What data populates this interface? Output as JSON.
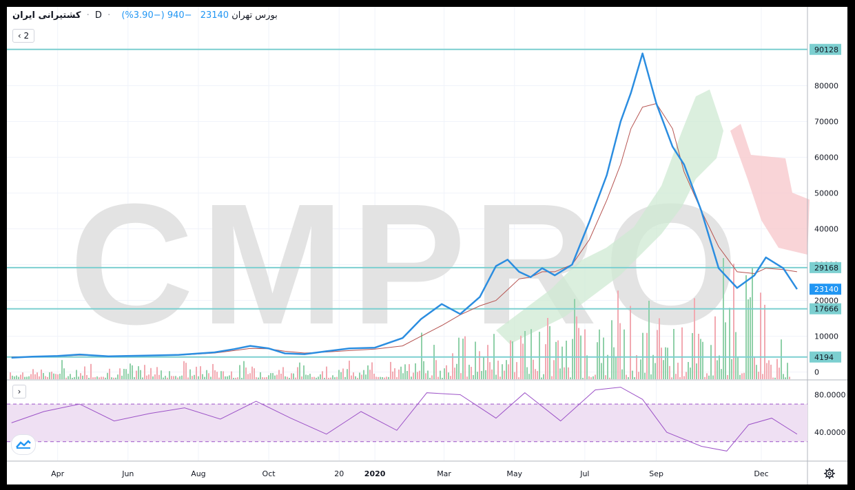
{
  "legend": {
    "symbol": "کشتیرانی ایران",
    "interval": "D",
    "exchange": "بورس تهران",
    "last": "23140",
    "change": "−940 (−3.90%)",
    "collapse_count": "2"
  },
  "colors": {
    "price_line": "#2b8de0",
    "ma_line": "#b5524f",
    "level_line": "#7ccfd0",
    "level_label_bg": "#7ccfd0",
    "price_label_bg": "#2196f3",
    "rsi_line": "#9c52c7",
    "rsi_band": "#efe0f3",
    "vol_up": "#8fd0a8",
    "vol_down": "#f2a9b1",
    "cloud_up": "#cfe9d3",
    "cloud_down": "#f8c9cd",
    "watermark": "#e3e3e3"
  },
  "watermark": "CMPRO",
  "chart_data": [
    {
      "type": "line",
      "name": "price",
      "ylim": [
        -2000,
        102000
      ],
      "y_ticks": [
        "0",
        "10000",
        "20000",
        "30000",
        "40000",
        "50000",
        "60000",
        "70000",
        "80000"
      ],
      "x_ticks": [
        "Apr",
        "Jun",
        "Aug",
        "Oct",
        "20",
        "2020",
        "Mar",
        "May",
        "Jul",
        "Sep",
        "Dec"
      ],
      "levels": [
        "90128",
        "29168",
        "17666",
        "4194"
      ],
      "current_label": "23140",
      "x": [
        "2019-02-20",
        "2019-03-10",
        "2019-04-01",
        "2019-04-20",
        "2019-05-15",
        "2019-06-15",
        "2019-07-15",
        "2019-08-15",
        "2019-09-01",
        "2019-09-15",
        "2019-10-01",
        "2019-10-15",
        "2019-11-01",
        "2019-11-20",
        "2019-12-10",
        "2020-01-01",
        "2020-01-25",
        "2020-02-10",
        "2020-02-28",
        "2020-03-15",
        "2020-04-01",
        "2020-04-15",
        "2020-04-25",
        "2020-05-05",
        "2020-05-15",
        "2020-05-25",
        "2020-06-05",
        "2020-06-20",
        "2020-07-05",
        "2020-07-20",
        "2020-08-01",
        "2020-08-10",
        "2020-08-20",
        "2020-09-01",
        "2020-09-15",
        "2020-09-25",
        "2020-10-10",
        "2020-10-25",
        "2020-11-10",
        "2020-11-25",
        "2020-12-05",
        "2020-12-20",
        "2021-01-01"
      ],
      "series": [
        {
          "values": [
            4000,
            4300,
            4500,
            4900,
            4400,
            4600,
            4800,
            5500,
            6400,
            7300,
            6600,
            5200,
            5000,
            5800,
            6600,
            6800,
            9500,
            14800,
            19000,
            16200,
            21000,
            29600,
            31400,
            28000,
            26500,
            29000,
            27000,
            30000,
            42000,
            55000,
            70000,
            78000,
            89000,
            75000,
            63000,
            58000,
            45000,
            29000,
            23500,
            27000,
            32000,
            29000,
            23140
          ]
        },
        {
          "values": [
            4200,
            4300,
            4400,
            4700,
            4500,
            4550,
            4700,
            5300,
            6000,
            6600,
            6500,
            5800,
            5300,
            5600,
            6000,
            6400,
            7300,
            10000,
            13000,
            16000,
            18500,
            20000,
            23000,
            26000,
            26500,
            28000,
            28000,
            30000,
            37000,
            48000,
            58000,
            68000,
            74000,
            75000,
            68000,
            56000,
            45000,
            35000,
            28000,
            27500,
            29000,
            28600,
            28000
          ]
        }
      ]
    },
    {
      "type": "line",
      "name": "RSI",
      "ylim": [
        10,
        95
      ],
      "y_ticks": [
        "80.0000",
        "40.0000"
      ],
      "band": [
        70,
        30
      ],
      "x": [
        "2019-02-20",
        "2019-03-20",
        "2019-04-20",
        "2019-05-20",
        "2019-06-20",
        "2019-07-20",
        "2019-08-20",
        "2019-09-20",
        "2019-10-20",
        "2019-11-20",
        "2019-12-20",
        "2020-01-20",
        "2020-02-15",
        "2020-03-15",
        "2020-04-15",
        "2020-05-10",
        "2020-06-10",
        "2020-07-10",
        "2020-08-01",
        "2020-08-20",
        "2020-09-10",
        "2020-10-10",
        "2020-11-01",
        "2020-11-20",
        "2020-12-10",
        "2021-01-01"
      ],
      "values": [
        50,
        62,
        70,
        52,
        60,
        66,
        54,
        73,
        55,
        38,
        62,
        42,
        82,
        80,
        55,
        82,
        52,
        85,
        88,
        75,
        40,
        25,
        20,
        48,
        55,
        38
      ]
    }
  ]
}
